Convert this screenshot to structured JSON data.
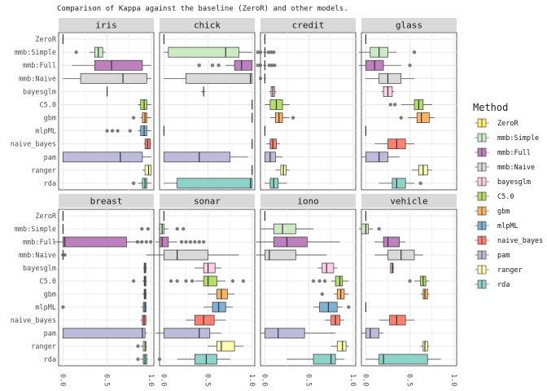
{
  "chart_data": {
    "type": "boxplot",
    "title": "Comparison of Kappa against the baseline (ZeroR) and other models.",
    "xlabel": "",
    "ylabel": "",
    "xlim": [
      0,
      1
    ],
    "x_ticks": [
      "0.0",
      "0.5",
      "1.0"
    ],
    "grid": true,
    "legend_title": "Method",
    "legend_position": "right",
    "methods": [
      "ZeroR",
      "mmb:Simple",
      "mmb:Full",
      "mmb:Naive",
      "bayesglm",
      "C5.0",
      "gbm",
      "mlpML",
      "naive_bayes",
      "pam",
      "ranger",
      "rda"
    ],
    "colors": [
      "#FFED6F",
      "#CCEBC5",
      "#BC80BD",
      "#D9D9D9",
      "#FCCDE5",
      "#B3DE69",
      "#FDB462",
      "#80B1D3",
      "#FB8072",
      "#BEBADA",
      "#FFFFB3",
      "#8DD3C7"
    ],
    "panels": [
      {
        "name": "iris",
        "boxes": [
          {
            "q1": 0,
            "med": 0,
            "q3": 0,
            "lo": 0,
            "hi": 0,
            "out": []
          },
          {
            "q1": 0.36,
            "med": 0.4,
            "q3": 0.45,
            "lo": 0.3,
            "hi": 0.48,
            "out": [
              0.15
            ]
          },
          {
            "q1": 0.36,
            "med": 0.55,
            "q3": 0.9,
            "lo": 0.1,
            "hi": 1.0,
            "out": []
          },
          {
            "q1": 0.2,
            "med": 0.68,
            "q3": 0.95,
            "lo": 0.0,
            "hi": 1.0,
            "out": []
          },
          {
            "q1": 0.5,
            "med": 0.5,
            "q3": 0.5,
            "lo": 0.5,
            "hi": 0.5,
            "out": []
          },
          {
            "q1": 0.88,
            "med": 0.92,
            "q3": 0.95,
            "lo": 0.85,
            "hi": 1.0,
            "out": []
          },
          {
            "q1": 0.9,
            "med": 0.93,
            "q3": 0.95,
            "lo": 0.88,
            "hi": 1.0,
            "out": [
              0.8
            ]
          },
          {
            "q1": 0.88,
            "med": 0.92,
            "q3": 0.95,
            "lo": 0.85,
            "hi": 1.0,
            "out": [
              0.5,
              0.56,
              0.62,
              0.76
            ]
          },
          {
            "q1": 0.93,
            "med": 0.96,
            "q3": 0.99,
            "lo": 0.92,
            "hi": 1.0,
            "out": []
          },
          {
            "q1": 0.0,
            "med": 0.65,
            "q3": 0.9,
            "lo": 0.0,
            "hi": 1.0,
            "out": []
          },
          {
            "q1": 0.93,
            "med": 0.97,
            "q3": 1.0,
            "lo": 0.9,
            "hi": 1.0,
            "out": []
          },
          {
            "q1": 0.9,
            "med": 0.93,
            "q3": 0.95,
            "lo": 0.85,
            "hi": 1.0,
            "out": [
              0.8
            ]
          }
        ]
      },
      {
        "name": "chick",
        "boxes": [
          {
            "q1": 0,
            "med": 0,
            "q3": 0,
            "lo": 0,
            "hi": 0,
            "out": []
          },
          {
            "q1": 0.05,
            "med": 0.7,
            "q3": 0.85,
            "lo": 0.0,
            "hi": 1.0,
            "out": []
          },
          {
            "q1": 0.8,
            "med": 0.88,
            "q3": 1.0,
            "lo": 0.7,
            "hi": 1.0,
            "out": [
              0.4,
              0.55,
              0.62
            ]
          },
          {
            "q1": 0.25,
            "med": 0.98,
            "q3": 1.0,
            "lo": 0.0,
            "hi": 1.0,
            "out": []
          },
          {
            "q1": 0.45,
            "med": 0.45,
            "q3": 0.45,
            "lo": 0.42,
            "hi": 0.47,
            "out": []
          },
          {
            "q1": 1.0,
            "med": 1.0,
            "q3": 1.0,
            "lo": 0.99,
            "hi": 1.0,
            "out": []
          },
          {
            "q1": 1.0,
            "med": 1.0,
            "q3": 1.0,
            "lo": 0.99,
            "hi": 1.0,
            "out": []
          },
          {
            "q1": 0.0,
            "med": 0.0,
            "q3": 0.0,
            "lo": 0.0,
            "hi": 0.0,
            "out": []
          },
          {
            "q1": 1.0,
            "med": 1.0,
            "q3": 1.0,
            "lo": 0.99,
            "hi": 1.0,
            "out": []
          },
          {
            "q1": 0.0,
            "med": 0.4,
            "q3": 0.75,
            "lo": 0.0,
            "hi": 0.95,
            "out": []
          },
          {
            "q1": 1.0,
            "med": 1.0,
            "q3": 1.0,
            "lo": 0.99,
            "hi": 1.0,
            "out": []
          },
          {
            "q1": 0.15,
            "med": 0.98,
            "q3": 1.0,
            "lo": 0.0,
            "hi": 1.0,
            "out": []
          }
        ]
      },
      {
        "name": "credit",
        "boxes": [
          {
            "q1": 0,
            "med": 0,
            "q3": 0,
            "lo": 0,
            "hi": 0,
            "out": []
          },
          {
            "q1": 0.0,
            "med": 0.0,
            "q3": 0.0,
            "lo": -0.02,
            "hi": 0.02,
            "out": [
              -0.08,
              -0.05,
              0.04,
              0.07,
              0.1
            ]
          },
          {
            "q1": 0.0,
            "med": 0.0,
            "q3": 0.0,
            "lo": -0.02,
            "hi": 0.02,
            "out": [
              -0.08,
              -0.05,
              0.05,
              0.08,
              0.11
            ]
          },
          {
            "q1": 0.0,
            "med": 0.0,
            "q3": 0.0,
            "lo": -0.01,
            "hi": 0.01,
            "out": [
              -0.05
            ]
          },
          {
            "q1": 0.07,
            "med": 0.09,
            "q3": 0.11,
            "lo": 0.05,
            "hi": 0.13,
            "out": []
          },
          {
            "q1": 0.06,
            "med": 0.13,
            "q3": 0.2,
            "lo": 0.0,
            "hi": 0.28,
            "out": []
          },
          {
            "q1": 0.12,
            "med": 0.16,
            "q3": 0.2,
            "lo": 0.06,
            "hi": 0.28,
            "out": [
              0.32
            ]
          },
          {
            "q1": 0.0,
            "med": 0.0,
            "q3": 0.0,
            "lo": 0.0,
            "hi": 0.0,
            "out": []
          },
          {
            "q1": 0.06,
            "med": 0.09,
            "q3": 0.13,
            "lo": 0.02,
            "hi": 0.17,
            "out": []
          },
          {
            "q1": 0.0,
            "med": 0.06,
            "q3": 0.12,
            "lo": 0.0,
            "hi": 0.2,
            "out": []
          },
          {
            "q1": 0.18,
            "med": 0.21,
            "q3": 0.24,
            "lo": 0.12,
            "hi": 0.28,
            "out": []
          },
          {
            "q1": 0.06,
            "med": 0.1,
            "q3": 0.15,
            "lo": 0.0,
            "hi": 0.25,
            "out": []
          }
        ]
      },
      {
        "name": "glass",
        "boxes": [
          {
            "q1": 0,
            "med": 0,
            "q3": 0,
            "lo": 0,
            "hi": 0,
            "out": []
          },
          {
            "q1": 0.05,
            "med": 0.15,
            "q3": 0.25,
            "lo": -0.08,
            "hi": 0.35,
            "out": [
              0.55
            ]
          },
          {
            "q1": 0.0,
            "med": 0.1,
            "q3": 0.2,
            "lo": -0.08,
            "hi": 0.4,
            "out": [
              0.5
            ]
          },
          {
            "q1": 0.15,
            "med": 0.25,
            "q3": 0.4,
            "lo": 0.0,
            "hi": 0.55,
            "out": []
          },
          {
            "q1": 0.2,
            "med": 0.25,
            "q3": 0.3,
            "lo": 0.18,
            "hi": 0.32,
            "out": []
          },
          {
            "q1": 0.55,
            "med": 0.6,
            "q3": 0.65,
            "lo": 0.4,
            "hi": 0.75,
            "out": [
              0.28,
              0.33
            ]
          },
          {
            "q1": 0.58,
            "med": 0.63,
            "q3": 0.72,
            "lo": 0.48,
            "hi": 0.78,
            "out": [
              0.4
            ]
          },
          {
            "q1": 0.0,
            "med": 0.0,
            "q3": 0.0,
            "lo": 0.0,
            "hi": 0.0,
            "out": []
          },
          {
            "q1": 0.25,
            "med": 0.35,
            "q3": 0.45,
            "lo": 0.1,
            "hi": 0.55,
            "out": []
          },
          {
            "q1": 0.0,
            "med": 0.15,
            "q3": 0.25,
            "lo": -0.05,
            "hi": 0.38,
            "out": []
          },
          {
            "q1": 0.6,
            "med": 0.65,
            "q3": 0.7,
            "lo": 0.52,
            "hi": 0.75,
            "out": []
          },
          {
            "q1": 0.3,
            "med": 0.35,
            "q3": 0.45,
            "lo": 0.15,
            "hi": 0.55,
            "out": [
              0.62
            ]
          }
        ]
      },
      {
        "name": "breast",
        "boxes": [
          {
            "q1": 0,
            "med": 0,
            "q3": 0,
            "lo": 0,
            "hi": 0,
            "out": []
          },
          {
            "q1": 0,
            "med": 0,
            "q3": 0,
            "lo": 0,
            "hi": 0,
            "out": []
          },
          {
            "q1": 0.0,
            "med": 0.02,
            "q3": 0.72,
            "lo": -0.1,
            "hi": 0.9,
            "out": []
          },
          {
            "q1": 0.0,
            "med": 0.0,
            "q3": 0.0,
            "lo": -0.02,
            "hi": 0.02,
            "out": [
              0.0,
              0.02
            ]
          },
          {
            "q1": 0.92,
            "med": 0.93,
            "q3": 0.94,
            "lo": 0.91,
            "hi": 0.95,
            "out": []
          },
          {
            "q1": 0.92,
            "med": 0.93,
            "q3": 0.94,
            "lo": 0.9,
            "hi": 0.95,
            "out": [
              0.8
            ]
          },
          {
            "q1": 0.92,
            "med": 0.93,
            "q3": 0.94,
            "lo": 0.9,
            "hi": 0.95,
            "out": []
          },
          {
            "q1": 0.91,
            "med": 0.93,
            "q3": 0.94,
            "lo": 0.89,
            "hi": 0.95,
            "out": [
              0.0
            ]
          },
          {
            "q1": 0.9,
            "med": 0.92,
            "q3": 0.94,
            "lo": 0.88,
            "hi": 0.95,
            "out": []
          },
          {
            "q1": 0.0,
            "med": 0.9,
            "q3": 0.93,
            "lo": 0.0,
            "hi": 0.95,
            "out": []
          },
          {
            "q1": 0.91,
            "med": 0.93,
            "q3": 0.94,
            "lo": 0.88,
            "hi": 0.95,
            "out": [
              0.85
            ]
          },
          {
            "q1": 0.91,
            "med": 0.93,
            "q3": 0.95,
            "lo": 0.88,
            "hi": 0.96,
            "out": [
              0.85
            ]
          }
        ]
      },
      {
        "name": "sonar",
        "boxes": [
          {
            "q1": 0,
            "med": 0,
            "q3": 0,
            "lo": 0,
            "hi": 0,
            "out": []
          },
          {
            "q1": -0.05,
            "med": -0.02,
            "q3": 0.0,
            "lo": -0.06,
            "hi": 0.05,
            "out": [
              -0.25,
              -0.18,
              0.15,
              0.22
            ]
          },
          {
            "q1": -0.05,
            "med": -0.02,
            "q3": 0.05,
            "lo": -0.1,
            "hi": 0.15,
            "out": [
              -0.3,
              -0.25,
              -0.2,
              -0.15,
              0.2,
              0.25,
              0.3,
              0.35,
              0.4,
              0.45
            ]
          },
          {
            "q1": 0.0,
            "med": 0.15,
            "q3": 0.5,
            "lo": -0.2,
            "hi": 0.85,
            "out": []
          },
          {
            "q1": 0.45,
            "med": 0.5,
            "q3": 0.58,
            "lo": 0.35,
            "hi": 0.65,
            "out": []
          },
          {
            "q1": 0.45,
            "med": 0.5,
            "q3": 0.6,
            "lo": 0.35,
            "hi": 0.7,
            "out": [
              0.08,
              0.15,
              0.25,
              0.32,
              0.78,
              0.9
            ]
          },
          {
            "q1": 0.6,
            "med": 0.65,
            "q3": 0.72,
            "lo": 0.5,
            "hi": 0.8,
            "out": []
          },
          {
            "q1": 0.55,
            "med": 0.62,
            "q3": 0.7,
            "lo": 0.45,
            "hi": 0.78,
            "out": []
          },
          {
            "q1": 0.35,
            "med": 0.45,
            "q3": 0.57,
            "lo": 0.25,
            "hi": 0.7,
            "out": []
          },
          {
            "q1": 0.0,
            "med": 0.4,
            "q3": 0.52,
            "lo": -0.1,
            "hi": 0.65,
            "out": []
          },
          {
            "q1": 0.6,
            "med": 0.65,
            "q3": 0.8,
            "lo": 0.5,
            "hi": 0.9,
            "out": []
          },
          {
            "q1": 0.35,
            "med": 0.48,
            "q3": 0.6,
            "lo": 0.15,
            "hi": 0.75,
            "out": [
              -0.05
            ]
          }
        ]
      },
      {
        "name": "iono",
        "boxes": [
          {
            "q1": 0,
            "med": 0,
            "q3": 0,
            "lo": 0,
            "hi": 0,
            "out": []
          },
          {
            "q1": 0.1,
            "med": 0.2,
            "q3": 0.35,
            "lo": -0.05,
            "hi": 0.55,
            "out": []
          },
          {
            "q1": 0.1,
            "med": 0.25,
            "q3": 0.48,
            "lo": -0.1,
            "hi": 0.85,
            "out": []
          },
          {
            "q1": 0.0,
            "med": 0.05,
            "q3": 0.35,
            "lo": -0.1,
            "hi": 0.7,
            "out": []
          },
          {
            "q1": 0.65,
            "med": 0.7,
            "q3": 0.78,
            "lo": 0.6,
            "hi": 0.82,
            "out": []
          },
          {
            "q1": 0.8,
            "med": 0.85,
            "q3": 0.88,
            "lo": 0.75,
            "hi": 0.95,
            "out": [
              0.55,
              0.62,
              0.68
            ]
          },
          {
            "q1": 0.82,
            "med": 0.86,
            "q3": 0.9,
            "lo": 0.78,
            "hi": 0.95,
            "out": [
              0.65
            ]
          },
          {
            "q1": 0.62,
            "med": 0.72,
            "q3": 0.82,
            "lo": 0.55,
            "hi": 0.88,
            "out": [
              0.95
            ]
          },
          {
            "q1": 0.75,
            "med": 0.8,
            "q3": 0.85,
            "lo": 0.68,
            "hi": 0.9,
            "out": []
          },
          {
            "q1": 0.0,
            "med": 0.15,
            "q3": 0.45,
            "lo": -0.05,
            "hi": 0.8,
            "out": []
          },
          {
            "q1": 0.82,
            "med": 0.88,
            "q3": 0.92,
            "lo": 0.75,
            "hi": 0.95,
            "out": []
          },
          {
            "q1": 0.55,
            "med": 0.75,
            "q3": 0.8,
            "lo": 0.25,
            "hi": 0.9,
            "out": []
          }
        ]
      },
      {
        "name": "vehicle",
        "boxes": [
          {
            "q1": 0,
            "med": 0,
            "q3": 0,
            "lo": 0,
            "hi": 0,
            "out": []
          },
          {
            "q1": -0.05,
            "med": 0.0,
            "q3": 0.03,
            "lo": -0.08,
            "hi": 0.08,
            "out": [
              0.15
            ]
          },
          {
            "q1": 0.2,
            "med": 0.25,
            "q3": 0.38,
            "lo": 0.1,
            "hi": 0.45,
            "out": []
          },
          {
            "q1": 0.25,
            "med": 0.4,
            "q3": 0.55,
            "lo": 0.1,
            "hi": 0.65,
            "out": []
          },
          {
            "q1": 0.28,
            "med": 0.3,
            "q3": 0.31,
            "lo": 0.27,
            "hi": 0.32,
            "out": []
          },
          {
            "q1": 0.62,
            "med": 0.65,
            "q3": 0.68,
            "lo": 0.55,
            "hi": 0.72,
            "out": [
              0.5
            ]
          },
          {
            "q1": 0.65,
            "med": 0.67,
            "q3": 0.7,
            "lo": 0.62,
            "hi": 0.72,
            "out": []
          },
          {
            "q1": 0.0,
            "med": 0.0,
            "q3": 0.0,
            "lo": 0.0,
            "hi": 0.0,
            "out": []
          },
          {
            "q1": 0.27,
            "med": 0.35,
            "q3": 0.45,
            "lo": 0.15,
            "hi": 0.55,
            "out": []
          },
          {
            "q1": 0.0,
            "med": 0.05,
            "q3": 0.15,
            "lo": -0.05,
            "hi": 0.2,
            "out": []
          },
          {
            "q1": 0.65,
            "med": 0.67,
            "q3": 0.7,
            "lo": 0.62,
            "hi": 0.72,
            "out": []
          },
          {
            "q1": 0.15,
            "med": 0.2,
            "q3": 0.7,
            "lo": 0.0,
            "hi": 0.85,
            "out": []
          }
        ]
      }
    ]
  }
}
